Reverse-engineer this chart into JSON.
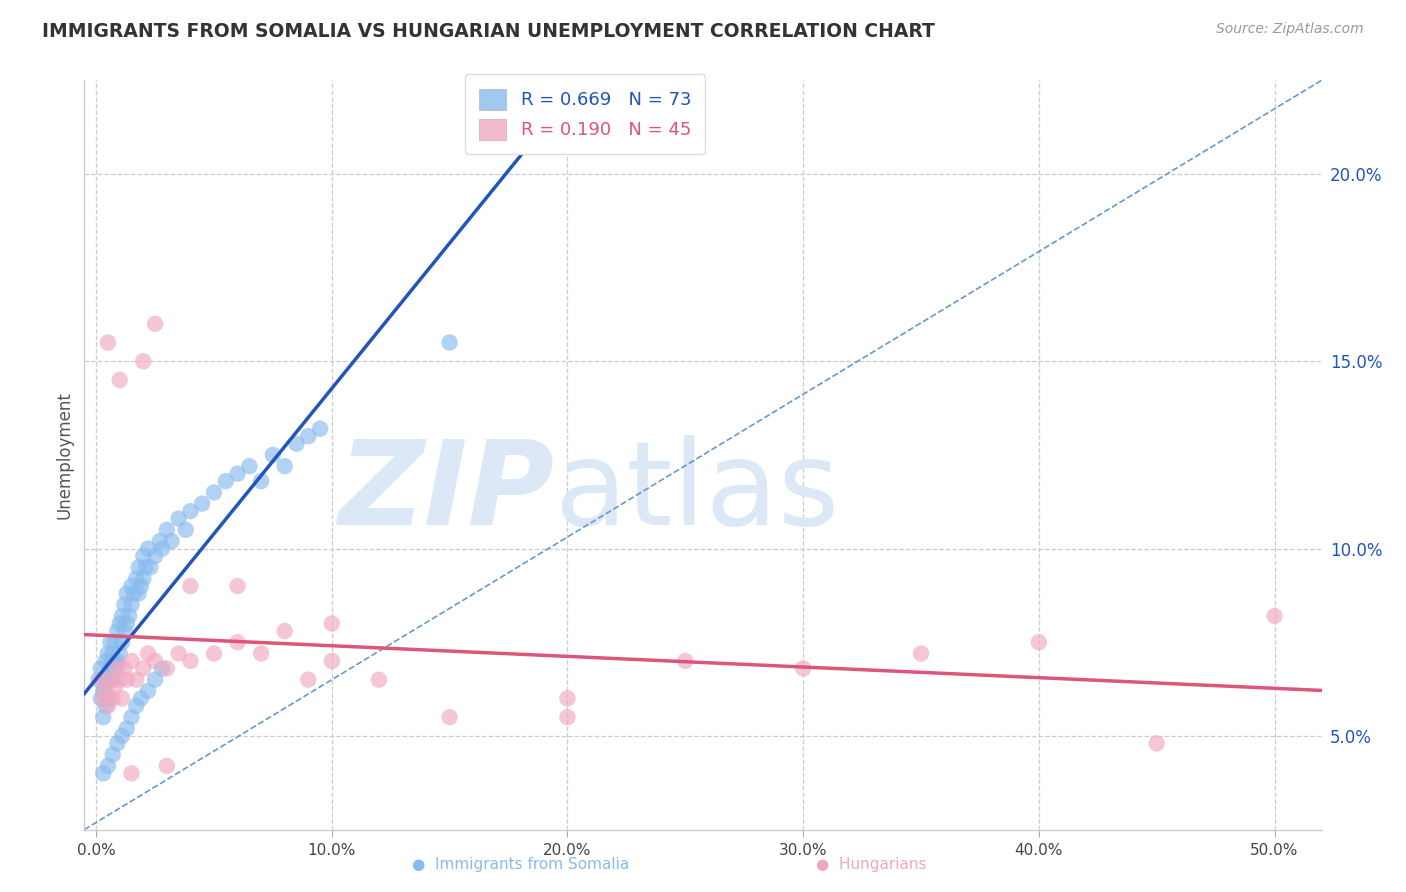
{
  "title": "IMMIGRANTS FROM SOMALIA VS HUNGARIAN UNEMPLOYMENT CORRELATION CHART",
  "source": "Source: ZipAtlas.com",
  "ylabel": "Unemployment",
  "xlim": [
    -0.005,
    0.52
  ],
  "ylim": [
    0.025,
    0.225
  ],
  "xticks": [
    0.0,
    0.1,
    0.2,
    0.3,
    0.4,
    0.5
  ],
  "xtick_labels": [
    "0.0%",
    "10.0%",
    "20.0%",
    "30.0%",
    "40.0%",
    "50.0%"
  ],
  "yticks_right": [
    0.05,
    0.1,
    0.15,
    0.2
  ],
  "ytick_labels_right": [
    "5.0%",
    "10.0%",
    "15.0%",
    "20.0%"
  ],
  "grid_color": "#cccccc",
  "background_color": "#ffffff",
  "somalia_color": "#88bbee",
  "hungarian_color": "#f0a8c0",
  "somalia_R": 0.669,
  "somalia_N": 73,
  "hungarian_R": 0.19,
  "hungarian_N": 45,
  "somalia_trend_color": "#2255bb",
  "hungarian_trend_color": "#dd5577",
  "diagonal_color": "#6699cc",
  "watermark_color": "#dce8f5",
  "somalia_points_x": [
    0.001,
    0.002,
    0.002,
    0.003,
    0.003,
    0.004,
    0.004,
    0.004,
    0.005,
    0.005,
    0.005,
    0.006,
    0.006,
    0.007,
    0.007,
    0.007,
    0.008,
    0.008,
    0.009,
    0.009,
    0.01,
    0.01,
    0.011,
    0.011,
    0.012,
    0.012,
    0.013,
    0.013,
    0.014,
    0.015,
    0.015,
    0.016,
    0.017,
    0.018,
    0.018,
    0.019,
    0.02,
    0.02,
    0.021,
    0.022,
    0.023,
    0.025,
    0.027,
    0.028,
    0.03,
    0.032,
    0.035,
    0.038,
    0.04,
    0.045,
    0.05,
    0.055,
    0.06,
    0.065,
    0.07,
    0.075,
    0.08,
    0.085,
    0.09,
    0.095,
    0.003,
    0.005,
    0.007,
    0.009,
    0.011,
    0.013,
    0.015,
    0.017,
    0.019,
    0.022,
    0.025,
    0.028,
    0.15
  ],
  "somalia_points_y": [
    0.065,
    0.06,
    0.068,
    0.062,
    0.055,
    0.058,
    0.064,
    0.07,
    0.06,
    0.065,
    0.072,
    0.068,
    0.075,
    0.07,
    0.065,
    0.072,
    0.068,
    0.075,
    0.07,
    0.078,
    0.072,
    0.08,
    0.075,
    0.082,
    0.078,
    0.085,
    0.08,
    0.088,
    0.082,
    0.085,
    0.09,
    0.088,
    0.092,
    0.088,
    0.095,
    0.09,
    0.092,
    0.098,
    0.095,
    0.1,
    0.095,
    0.098,
    0.102,
    0.1,
    0.105,
    0.102,
    0.108,
    0.105,
    0.11,
    0.112,
    0.115,
    0.118,
    0.12,
    0.122,
    0.118,
    0.125,
    0.122,
    0.128,
    0.13,
    0.132,
    0.04,
    0.042,
    0.045,
    0.048,
    0.05,
    0.052,
    0.055,
    0.058,
    0.06,
    0.062,
    0.065,
    0.068,
    0.155
  ],
  "hungarian_points_x": [
    0.002,
    0.003,
    0.004,
    0.005,
    0.006,
    0.007,
    0.008,
    0.009,
    0.01,
    0.011,
    0.012,
    0.013,
    0.015,
    0.017,
    0.02,
    0.022,
    0.025,
    0.03,
    0.035,
    0.04,
    0.05,
    0.06,
    0.07,
    0.08,
    0.09,
    0.1,
    0.12,
    0.15,
    0.2,
    0.25,
    0.3,
    0.35,
    0.4,
    0.45,
    0.5,
    0.005,
    0.01,
    0.015,
    0.02,
    0.025,
    0.03,
    0.04,
    0.06,
    0.1,
    0.2
  ],
  "hungarian_points_y": [
    0.065,
    0.06,
    0.062,
    0.058,
    0.065,
    0.06,
    0.063,
    0.068,
    0.065,
    0.06,
    0.068,
    0.065,
    0.07,
    0.065,
    0.068,
    0.072,
    0.07,
    0.068,
    0.072,
    0.07,
    0.072,
    0.075,
    0.072,
    0.078,
    0.065,
    0.07,
    0.065,
    0.055,
    0.06,
    0.07,
    0.068,
    0.072,
    0.075,
    0.048,
    0.082,
    0.155,
    0.145,
    0.04,
    0.15,
    0.16,
    0.042,
    0.09,
    0.09,
    0.08,
    0.055
  ]
}
